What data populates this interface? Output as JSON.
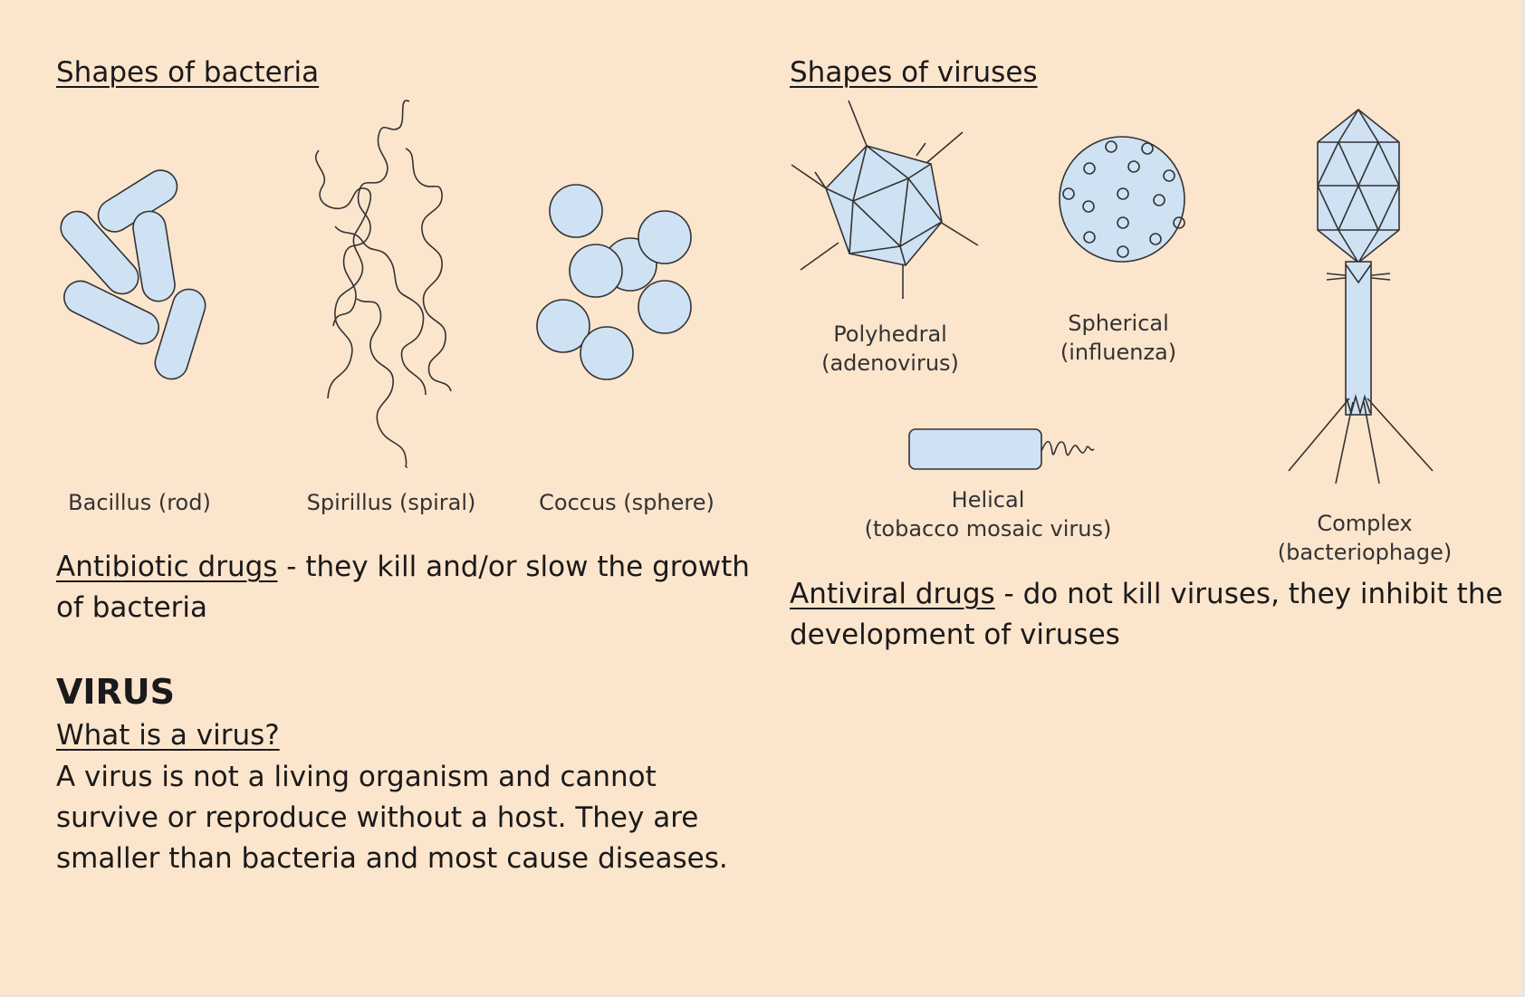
{
  "bacteria": {
    "heading": "Shapes of bacteria",
    "labels": {
      "bacillus": "Bacillus (rod)",
      "spirillus": "Spirillus (spiral)",
      "coccus": "Coccus (sphere)"
    },
    "antibiotic": {
      "term": "Antibiotic drugs",
      "text_line1": " - they kill and/or slow the growth",
      "text_line2": "of bacteria"
    }
  },
  "virus_section": {
    "title": "VIRUS",
    "question": "What is a virus?",
    "lines": [
      "A virus is not a living organism and cannot",
      "survive or reproduce without a host. They are",
      "smaller than bacteria and most cause diseases."
    ]
  },
  "viruses": {
    "heading": "Shapes of viruses",
    "labels": {
      "polyhedral": [
        "Polyhedral",
        "(adenovirus)"
      ],
      "spherical": [
        "Spherical",
        "(influenza)"
      ],
      "helical": [
        "Helical",
        "(tobacco mosaic virus)"
      ],
      "complex": [
        "Complex",
        "(bacteriophage)"
      ]
    },
    "antiviral": {
      "term": "Antiviral drugs",
      "text_line1": " - do not kill viruses, they inhibit the",
      "text_line2": "development of viruses"
    }
  },
  "colors": {
    "background": "#fce5cd",
    "shape_fill": "#cfe2f3",
    "stroke": "#333333"
  }
}
